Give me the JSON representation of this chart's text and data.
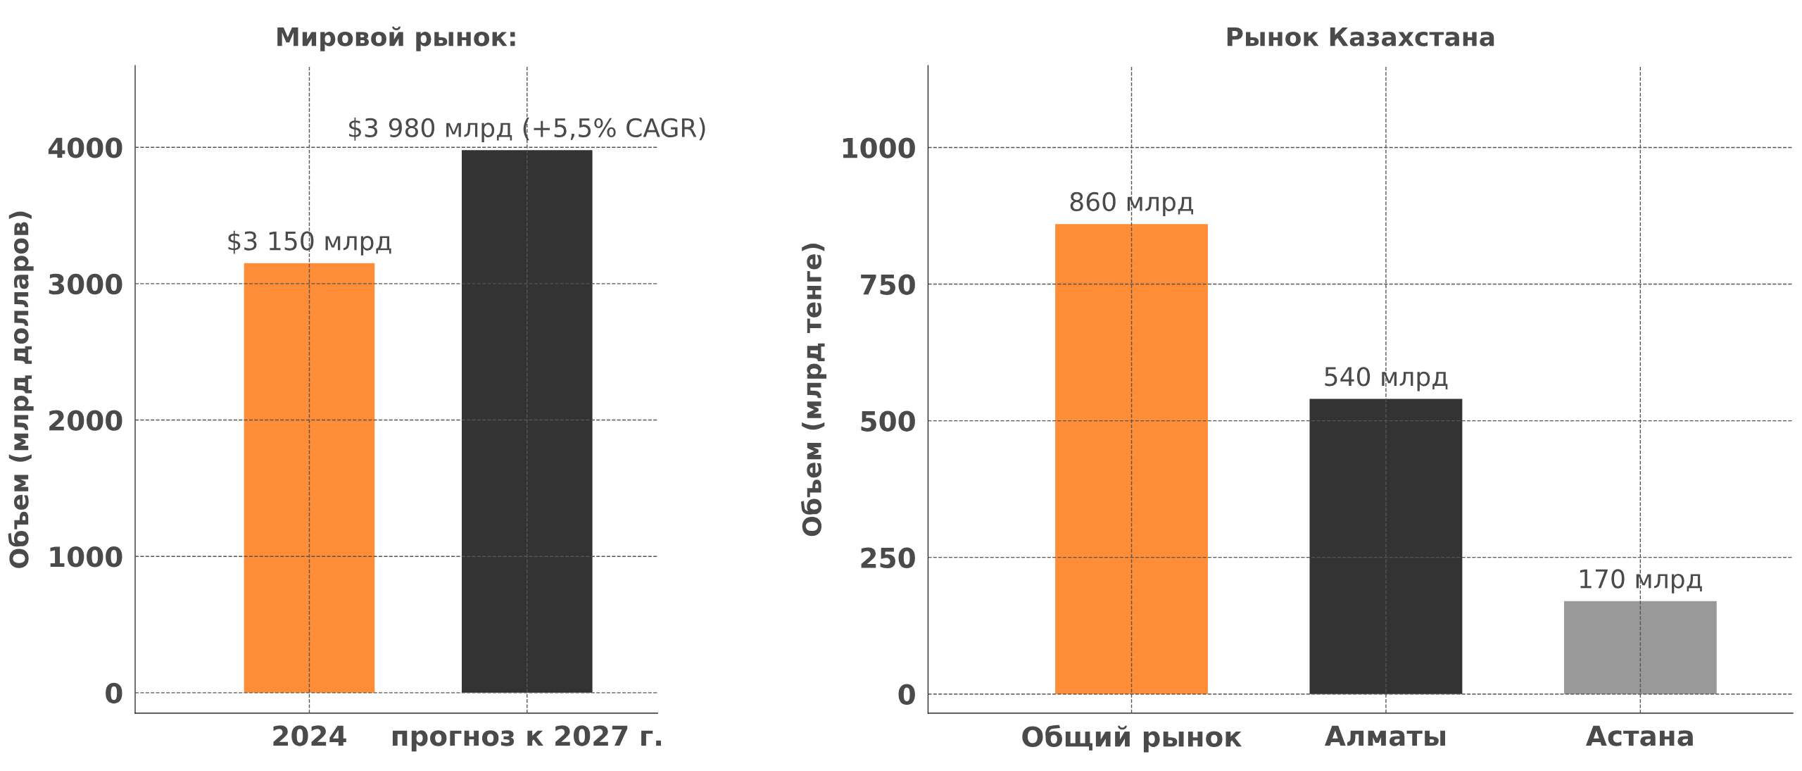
{
  "chart_data": [
    {
      "type": "bar",
      "title": "Мировой рынок:",
      "ylabel": "Объем (млрд долларов)",
      "categories": [
        "2024",
        "прогноз к 2027 г."
      ],
      "values": [
        3150,
        3980
      ],
      "colors": [
        "#ff8c37",
        "#333333"
      ],
      "value_labels": [
        "$3 150 млрд",
        "$3 980 млрд (+5,5% CAGR)"
      ],
      "ylim": [
        -150,
        4600
      ],
      "yticks": [
        0,
        1000,
        2000,
        3000,
        4000
      ],
      "grid": true
    },
    {
      "type": "bar",
      "title": "Рынок Казахстана",
      "ylabel": "Объем (млрд тенге)",
      "categories": [
        "Общий рынок",
        "Алматы",
        "Астана"
      ],
      "values": [
        860,
        540,
        170
      ],
      "colors": [
        "#ff8c37",
        "#333333",
        "#999999"
      ],
      "value_labels": [
        "860 млрд",
        "540 млрд",
        "170 млрд"
      ],
      "ylim": [
        -35,
        1150
      ],
      "yticks": [
        0,
        250,
        500,
        750,
        1000
      ],
      "grid": true
    }
  ]
}
